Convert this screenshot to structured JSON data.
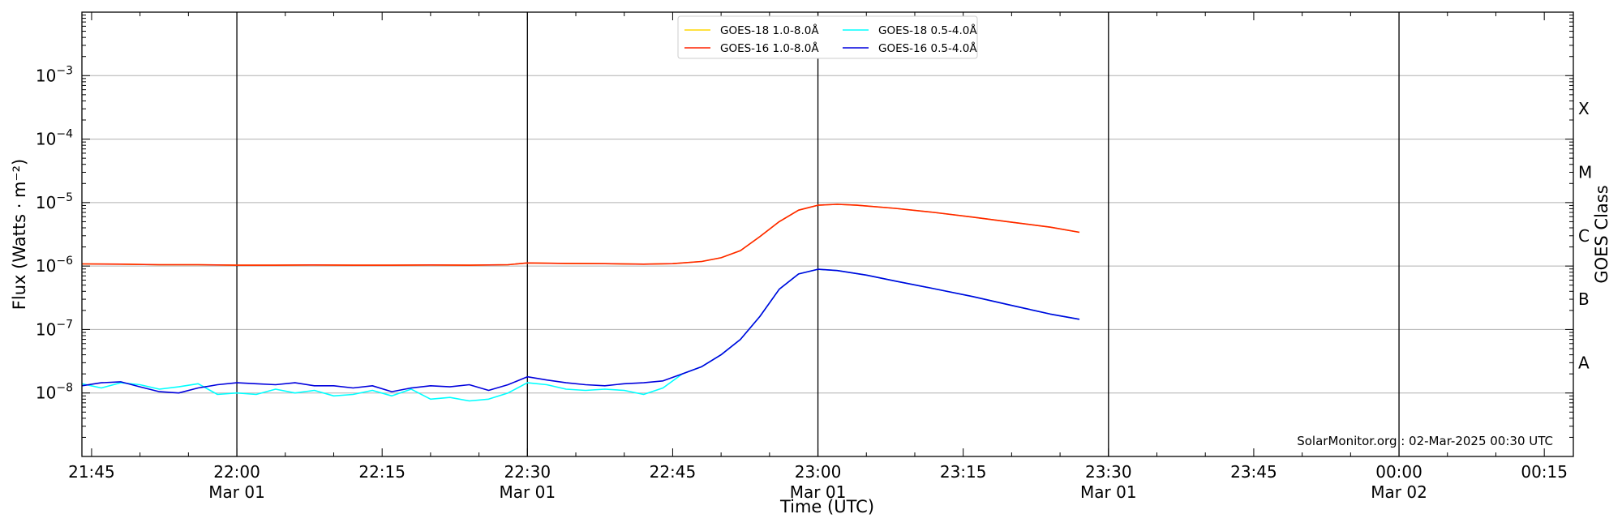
{
  "chart_data": {
    "type": "line",
    "title": "",
    "xlabel": "Time (UTC)",
    "ylabel": "Flux (Watts · m⁻²)",
    "y2label": "GOES Class",
    "yscale": "log",
    "ylim": [
      1e-09,
      0.01
    ],
    "y_ticks": [
      {
        "value": 1e-08,
        "base": "10",
        "exp": "−8"
      },
      {
        "value": 1e-07,
        "base": "10",
        "exp": "−7"
      },
      {
        "value": 1e-06,
        "base": "10",
        "exp": "−6"
      },
      {
        "value": 1e-05,
        "base": "10",
        "exp": "−5"
      },
      {
        "value": 0.0001,
        "base": "10",
        "exp": "−4"
      },
      {
        "value": 0.001,
        "base": "10",
        "exp": "−3"
      }
    ],
    "xlim": [
      "2025-03-01T21:44:00",
      "2025-03-02T00:18:00"
    ],
    "x_ticks": [
      {
        "time": "2025-03-01T21:45:00",
        "label": "21:45",
        "date": ""
      },
      {
        "time": "2025-03-01T22:00:00",
        "label": "22:00",
        "date": "Mar 01"
      },
      {
        "time": "2025-03-01T22:15:00",
        "label": "22:15",
        "date": ""
      },
      {
        "time": "2025-03-01T22:30:00",
        "label": "22:30",
        "date": "Mar 01"
      },
      {
        "time": "2025-03-01T22:45:00",
        "label": "22:45",
        "date": ""
      },
      {
        "time": "2025-03-01T23:00:00",
        "label": "23:00",
        "date": "Mar 01"
      },
      {
        "time": "2025-03-01T23:15:00",
        "label": "23:15",
        "date": ""
      },
      {
        "time": "2025-03-01T23:30:00",
        "label": "23:30",
        "date": "Mar 01"
      },
      {
        "time": "2025-03-01T23:45:00",
        "label": "23:45",
        "date": ""
      },
      {
        "time": "2025-03-02T00:00:00",
        "label": "00:00",
        "date": "Mar 02"
      },
      {
        "time": "2025-03-02T00:15:00",
        "label": "00:15",
        "date": ""
      }
    ],
    "vertical_lines": [
      "2025-03-01T22:00:00",
      "2025-03-01T22:30:00",
      "2025-03-01T23:00:00",
      "2025-03-01T23:30:00",
      "2025-03-02T00:00:00"
    ],
    "grid": "horizontal",
    "goes_classes": [
      {
        "label": "A",
        "flux": 3e-08
      },
      {
        "label": "B",
        "flux": 3e-07
      },
      {
        "label": "C",
        "flux": 3e-06
      },
      {
        "label": "M",
        "flux": 3e-05
      },
      {
        "label": "X",
        "flux": 0.0003
      }
    ],
    "legend_position": "top-center",
    "credit": "SolarMonitor.org : 02-Mar-2025 00:30 UTC",
    "series": [
      {
        "name": "GOES-18 1.0-8.0Å",
        "color": "#ffd700",
        "points": [
          [
            "2025-03-01T21:44:00",
            1.08e-06
          ],
          [
            "2025-03-01T21:48:00",
            1.07e-06
          ],
          [
            "2025-03-01T21:52:00",
            1.05e-06
          ],
          [
            "2025-03-01T21:56:00",
            1.05e-06
          ],
          [
            "2025-03-01T22:00:00",
            1.03e-06
          ],
          [
            "2025-03-01T22:04:00",
            1.03e-06
          ],
          [
            "2025-03-01T22:08:00",
            1.04e-06
          ],
          [
            "2025-03-01T22:12:00",
            1.03e-06
          ],
          [
            "2025-03-01T22:16:00",
            1.03e-06
          ],
          [
            "2025-03-01T22:20:00",
            1.04e-06
          ],
          [
            "2025-03-01T22:24:00",
            1.03e-06
          ],
          [
            "2025-03-01T22:28:00",
            1.05e-06
          ],
          [
            "2025-03-01T22:30:00",
            1.12e-06
          ],
          [
            "2025-03-01T22:34:00",
            1.1e-06
          ],
          [
            "2025-03-01T22:38:00",
            1.09e-06
          ],
          [
            "2025-03-01T22:42:00",
            1.07e-06
          ],
          [
            "2025-03-01T22:45:00",
            1.09e-06
          ],
          [
            "2025-03-01T22:48:00",
            1.18e-06
          ],
          [
            "2025-03-01T22:50:00",
            1.35e-06
          ],
          [
            "2025-03-01T22:52:00",
            1.75e-06
          ],
          [
            "2025-03-01T22:54:00",
            2.9e-06
          ],
          [
            "2025-03-01T22:56:00",
            5e-06
          ],
          [
            "2025-03-01T22:58:00",
            7.6e-06
          ],
          [
            "2025-03-01T23:00:00",
            9.1e-06
          ],
          [
            "2025-03-01T23:02:00",
            9.4e-06
          ],
          [
            "2025-03-01T23:04:00",
            9.1e-06
          ],
          [
            "2025-03-01T23:08:00",
            8.1e-06
          ],
          [
            "2025-03-01T23:12:00",
            7e-06
          ],
          [
            "2025-03-01T23:16:00",
            5.9e-06
          ],
          [
            "2025-03-01T23:20:00",
            4.9e-06
          ],
          [
            "2025-03-01T23:24:00",
            4.1e-06
          ],
          [
            "2025-03-01T23:27:00",
            3.4e-06
          ]
        ]
      },
      {
        "name": "GOES-16 1.0-8.0Å",
        "color": "#ff2200",
        "points": [
          [
            "2025-03-01T21:44:00",
            1.08e-06
          ],
          [
            "2025-03-01T21:48:00",
            1.07e-06
          ],
          [
            "2025-03-01T21:52:00",
            1.05e-06
          ],
          [
            "2025-03-01T21:56:00",
            1.05e-06
          ],
          [
            "2025-03-01T22:00:00",
            1.03e-06
          ],
          [
            "2025-03-01T22:04:00",
            1.03e-06
          ],
          [
            "2025-03-01T22:08:00",
            1.04e-06
          ],
          [
            "2025-03-01T22:12:00",
            1.03e-06
          ],
          [
            "2025-03-01T22:16:00",
            1.03e-06
          ],
          [
            "2025-03-01T22:20:00",
            1.04e-06
          ],
          [
            "2025-03-01T22:24:00",
            1.03e-06
          ],
          [
            "2025-03-01T22:28:00",
            1.05e-06
          ],
          [
            "2025-03-01T22:30:00",
            1.12e-06
          ],
          [
            "2025-03-01T22:34:00",
            1.1e-06
          ],
          [
            "2025-03-01T22:38:00",
            1.09e-06
          ],
          [
            "2025-03-01T22:42:00",
            1.07e-06
          ],
          [
            "2025-03-01T22:45:00",
            1.09e-06
          ],
          [
            "2025-03-01T22:48:00",
            1.18e-06
          ],
          [
            "2025-03-01T22:50:00",
            1.35e-06
          ],
          [
            "2025-03-01T22:52:00",
            1.75e-06
          ],
          [
            "2025-03-01T22:54:00",
            2.9e-06
          ],
          [
            "2025-03-01T22:56:00",
            5e-06
          ],
          [
            "2025-03-01T22:58:00",
            7.6e-06
          ],
          [
            "2025-03-01T23:00:00",
            9.1e-06
          ],
          [
            "2025-03-01T23:02:00",
            9.4e-06
          ],
          [
            "2025-03-01T23:04:00",
            9.1e-06
          ],
          [
            "2025-03-01T23:08:00",
            8.1e-06
          ],
          [
            "2025-03-01T23:12:00",
            7e-06
          ],
          [
            "2025-03-01T23:16:00",
            5.9e-06
          ],
          [
            "2025-03-01T23:20:00",
            4.9e-06
          ],
          [
            "2025-03-01T23:24:00",
            4.1e-06
          ],
          [
            "2025-03-01T23:27:00",
            3.4e-06
          ]
        ]
      },
      {
        "name": "GOES-18 0.5-4.0Å",
        "color": "#00ffff",
        "points": [
          [
            "2025-03-01T21:44:00",
            1.4e-08
          ],
          [
            "2025-03-01T21:46:00",
            1.2e-08
          ],
          [
            "2025-03-01T21:48:00",
            1.45e-08
          ],
          [
            "2025-03-01T21:50:00",
            1.35e-08
          ],
          [
            "2025-03-01T21:52:00",
            1.15e-08
          ],
          [
            "2025-03-01T21:54:00",
            1.25e-08
          ],
          [
            "2025-03-01T21:56:00",
            1.4e-08
          ],
          [
            "2025-03-01T21:58:00",
            9.5e-09
          ],
          [
            "2025-03-01T22:00:00",
            1e-08
          ],
          [
            "2025-03-01T22:02:00",
            9.5e-09
          ],
          [
            "2025-03-01T22:04:00",
            1.15e-08
          ],
          [
            "2025-03-01T22:06:00",
            1e-08
          ],
          [
            "2025-03-01T22:08:00",
            1.1e-08
          ],
          [
            "2025-03-01T22:10:00",
            9e-09
          ],
          [
            "2025-03-01T22:12:00",
            9.5e-09
          ],
          [
            "2025-03-01T22:14:00",
            1.1e-08
          ],
          [
            "2025-03-01T22:16:00",
            9e-09
          ],
          [
            "2025-03-01T22:18:00",
            1.15e-08
          ],
          [
            "2025-03-01T22:20:00",
            8e-09
          ],
          [
            "2025-03-01T22:22:00",
            8.5e-09
          ],
          [
            "2025-03-01T22:24:00",
            7.5e-09
          ],
          [
            "2025-03-01T22:26:00",
            8e-09
          ],
          [
            "2025-03-01T22:28:00",
            1e-08
          ],
          [
            "2025-03-01T22:30:00",
            1.45e-08
          ],
          [
            "2025-03-01T22:32:00",
            1.35e-08
          ],
          [
            "2025-03-01T22:34:00",
            1.15e-08
          ],
          [
            "2025-03-01T22:36:00",
            1.1e-08
          ],
          [
            "2025-03-01T22:38:00",
            1.15e-08
          ],
          [
            "2025-03-01T22:40:00",
            1.1e-08
          ],
          [
            "2025-03-01T22:42:00",
            9.5e-09
          ],
          [
            "2025-03-01T22:44:00",
            1.2e-08
          ],
          [
            "2025-03-01T22:46:00",
            2e-08
          ],
          [
            "2025-03-01T22:48:00",
            2.6e-08
          ],
          [
            "2025-03-01T22:50:00",
            4e-08
          ],
          [
            "2025-03-01T22:52:00",
            7e-08
          ],
          [
            "2025-03-01T22:54:00",
            1.6e-07
          ],
          [
            "2025-03-01T22:56:00",
            4.3e-07
          ],
          [
            "2025-03-01T22:58:00",
            7.5e-07
          ],
          [
            "2025-03-01T23:00:00",
            8.9e-07
          ],
          [
            "2025-03-01T23:02:00",
            8.5e-07
          ],
          [
            "2025-03-01T23:05:00",
            7.2e-07
          ],
          [
            "2025-03-01T23:08:00",
            5.8e-07
          ],
          [
            "2025-03-01T23:12:00",
            4.4e-07
          ],
          [
            "2025-03-01T23:16:00",
            3.3e-07
          ],
          [
            "2025-03-01T23:20:00",
            2.4e-07
          ],
          [
            "2025-03-01T23:24:00",
            1.75e-07
          ],
          [
            "2025-03-01T23:27:00",
            1.45e-07
          ]
        ]
      },
      {
        "name": "GOES-16 0.5-4.0Å",
        "color": "#0000dd",
        "points": [
          [
            "2025-03-01T21:44:00",
            1.3e-08
          ],
          [
            "2025-03-01T21:46:00",
            1.45e-08
          ],
          [
            "2025-03-01T21:48:00",
            1.5e-08
          ],
          [
            "2025-03-01T21:50:00",
            1.25e-08
          ],
          [
            "2025-03-01T21:52:00",
            1.05e-08
          ],
          [
            "2025-03-01T21:54:00",
            1e-08
          ],
          [
            "2025-03-01T21:56:00",
            1.2e-08
          ],
          [
            "2025-03-01T21:58:00",
            1.35e-08
          ],
          [
            "2025-03-01T22:00:00",
            1.45e-08
          ],
          [
            "2025-03-01T22:02:00",
            1.4e-08
          ],
          [
            "2025-03-01T22:04:00",
            1.35e-08
          ],
          [
            "2025-03-01T22:06:00",
            1.45e-08
          ],
          [
            "2025-03-01T22:08:00",
            1.3e-08
          ],
          [
            "2025-03-01T22:10:00",
            1.3e-08
          ],
          [
            "2025-03-01T22:12:00",
            1.2e-08
          ],
          [
            "2025-03-01T22:14:00",
            1.3e-08
          ],
          [
            "2025-03-01T22:16:00",
            1.05e-08
          ],
          [
            "2025-03-01T22:18:00",
            1.2e-08
          ],
          [
            "2025-03-01T22:20:00",
            1.3e-08
          ],
          [
            "2025-03-01T22:22:00",
            1.25e-08
          ],
          [
            "2025-03-01T22:24:00",
            1.35e-08
          ],
          [
            "2025-03-01T22:26:00",
            1.1e-08
          ],
          [
            "2025-03-01T22:28:00",
            1.35e-08
          ],
          [
            "2025-03-01T22:30:00",
            1.8e-08
          ],
          [
            "2025-03-01T22:32:00",
            1.6e-08
          ],
          [
            "2025-03-01T22:34:00",
            1.45e-08
          ],
          [
            "2025-03-01T22:36:00",
            1.35e-08
          ],
          [
            "2025-03-01T22:38:00",
            1.3e-08
          ],
          [
            "2025-03-01T22:40:00",
            1.4e-08
          ],
          [
            "2025-03-01T22:42:00",
            1.45e-08
          ],
          [
            "2025-03-01T22:44:00",
            1.55e-08
          ],
          [
            "2025-03-01T22:46:00",
            2e-08
          ],
          [
            "2025-03-01T22:48:00",
            2.6e-08
          ],
          [
            "2025-03-01T22:50:00",
            4e-08
          ],
          [
            "2025-03-01T22:52:00",
            7e-08
          ],
          [
            "2025-03-01T22:54:00",
            1.6e-07
          ],
          [
            "2025-03-01T22:56:00",
            4.3e-07
          ],
          [
            "2025-03-01T22:58:00",
            7.5e-07
          ],
          [
            "2025-03-01T23:00:00",
            8.9e-07
          ],
          [
            "2025-03-01T23:02:00",
            8.5e-07
          ],
          [
            "2025-03-01T23:05:00",
            7.2e-07
          ],
          [
            "2025-03-01T23:08:00",
            5.8e-07
          ],
          [
            "2025-03-01T23:12:00",
            4.4e-07
          ],
          [
            "2025-03-01T23:16:00",
            3.3e-07
          ],
          [
            "2025-03-01T23:20:00",
            2.4e-07
          ],
          [
            "2025-03-01T23:24:00",
            1.75e-07
          ],
          [
            "2025-03-01T23:27:00",
            1.45e-07
          ]
        ]
      }
    ]
  }
}
